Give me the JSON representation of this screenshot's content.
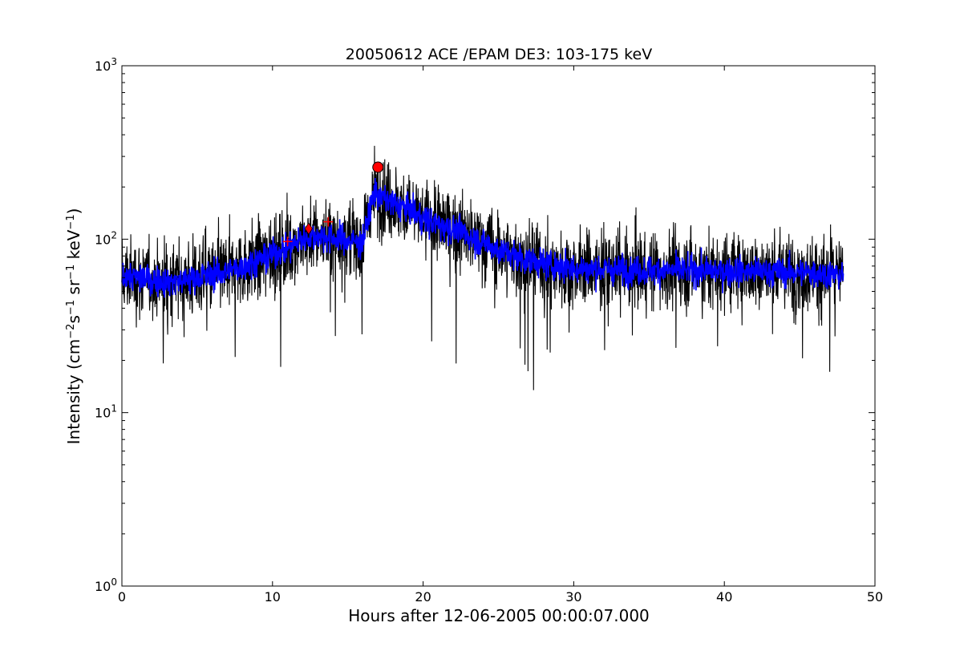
{
  "chart_data": {
    "type": "line",
    "title": "20050612 ACE /EPAM DE3: 103-175 keV",
    "xlabel": "Hours after 12-06-2005 00:00:07.000",
    "ylabel": {
      "prefix": "Intensity (cm",
      "sup1": "−2",
      "s": "s",
      "sup2": "−1",
      "sr": " sr",
      "sup3": "−1",
      "kev": " keV",
      "sup4": "−1",
      "suffix": ")"
    },
    "xlim": [
      0,
      50
    ],
    "ylim": [
      1,
      1000
    ],
    "yscale": "log",
    "grid": false,
    "x_ticks": [
      "0",
      "10",
      "20",
      "30",
      "40",
      "50"
    ],
    "y_ticks": [
      {
        "base": "10",
        "exp": "0",
        "value": 1
      },
      {
        "base": "10",
        "exp": "1",
        "value": 10
      },
      {
        "base": "10",
        "exp": "2",
        "value": 100
      },
      {
        "base": "10",
        "exp": "3",
        "value": 1000
      }
    ],
    "series": [
      {
        "color": "#000000",
        "profile_x": [
          0,
          1,
          2,
          3,
          4,
          5,
          6,
          7,
          8,
          9,
          10,
          11,
          12,
          13,
          14,
          15,
          16,
          16.4,
          16.8,
          17.2,
          18,
          19,
          20,
          22,
          24,
          26,
          28,
          30,
          34,
          38,
          42,
          46,
          47.9
        ],
        "profile_y": [
          62,
          60,
          58,
          57,
          58,
          60,
          62,
          65,
          70,
          75,
          82,
          90,
          100,
          105,
          102,
          98,
          96,
          140,
          190,
          175,
          160,
          150,
          130,
          115,
          95,
          80,
          72,
          68,
          66,
          66,
          65,
          64,
          62
        ],
        "noise": "high"
      },
      {
        "color": "#0000ff",
        "profile_x": [
          0,
          1,
          2,
          3,
          4,
          5,
          6,
          7,
          8,
          9,
          10,
          11,
          12,
          13,
          14,
          15,
          16,
          16.4,
          16.8,
          17.2,
          18,
          19,
          20,
          22,
          24,
          26,
          28,
          30,
          34,
          38,
          42,
          46,
          47.9
        ],
        "profile_y": [
          62,
          60,
          58,
          57,
          58,
          60,
          62,
          65,
          70,
          75,
          82,
          90,
          100,
          105,
          102,
          98,
          96,
          140,
          190,
          175,
          160,
          150,
          130,
          115,
          95,
          80,
          72,
          68,
          66,
          66,
          65,
          64,
          62
        ],
        "noise": "low"
      }
    ],
    "markers": [
      {
        "shape": "circle",
        "x": 17.0,
        "y": 260,
        "color": "#ff0000"
      },
      {
        "shape": "diamond",
        "x": 12.4,
        "y": 115,
        "color": "#ff0000"
      },
      {
        "shape": "plus",
        "x": 11.0,
        "y": 97,
        "color": "#ff0000"
      },
      {
        "shape": "plus",
        "x": 13.7,
        "y": 126,
        "color": "#ff0000"
      }
    ]
  }
}
